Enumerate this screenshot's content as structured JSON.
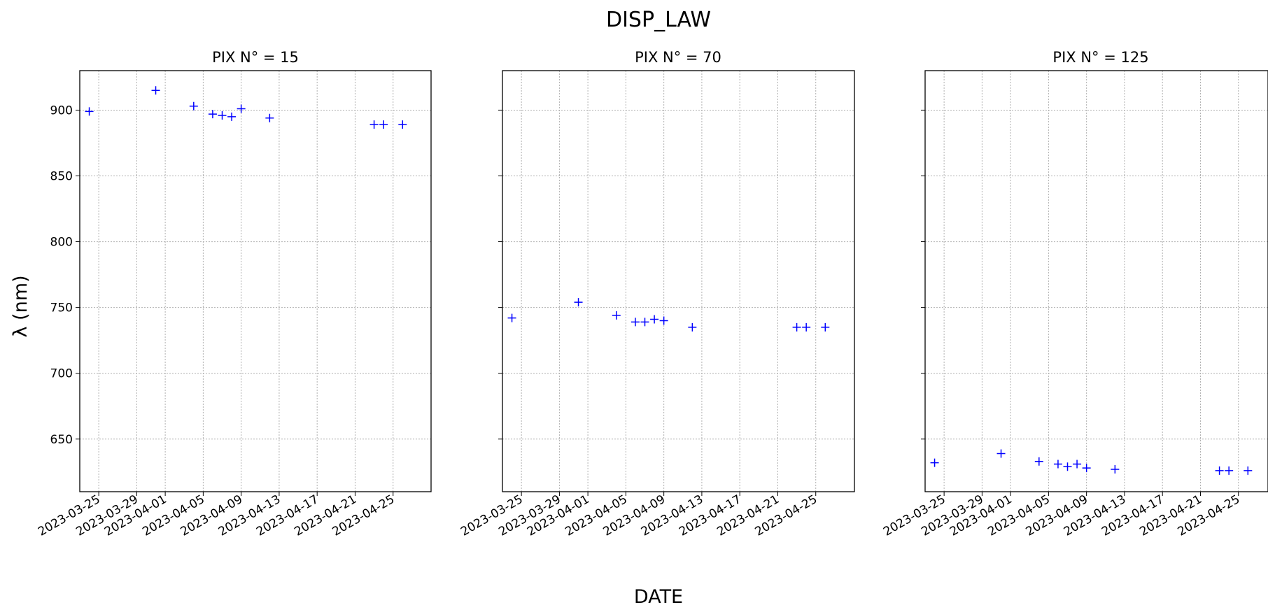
{
  "figure": {
    "title": "DISP_LAW",
    "xlabel": "DATE",
    "ylabel": "λ (nm)"
  },
  "chart_data": [
    {
      "type": "scatter",
      "title": "PIX N° = 15",
      "marker": "+",
      "color": "#0000ff",
      "grid": true,
      "xlim": [
        "2023-03-23",
        "2023-04-29"
      ],
      "ylim": [
        610,
        930
      ],
      "xticks": [
        "2023-03-25",
        "2023-03-29",
        "2023-04-01",
        "2023-04-05",
        "2023-04-09",
        "2023-04-13",
        "2023-04-17",
        "2023-04-21",
        "2023-04-25"
      ],
      "yticks": [
        "650",
        "700",
        "750",
        "800",
        "850",
        "900"
      ],
      "x": [
        "2023-03-24",
        "2023-03-31",
        "2023-04-04",
        "2023-04-06",
        "2023-04-07",
        "2023-04-08",
        "2023-04-09",
        "2023-04-12",
        "2023-04-23",
        "2023-04-24",
        "2023-04-26"
      ],
      "y": [
        899,
        915,
        903,
        897,
        896,
        895,
        901,
        894,
        889,
        889,
        889
      ]
    },
    {
      "type": "scatter",
      "title": "PIX N° = 70",
      "marker": "+",
      "color": "#0000ff",
      "grid": true,
      "xlim": [
        "2023-03-23",
        "2023-04-29"
      ],
      "ylim": [
        610,
        930
      ],
      "xticks": [
        "2023-03-25",
        "2023-03-29",
        "2023-04-01",
        "2023-04-05",
        "2023-04-09",
        "2023-04-13",
        "2023-04-17",
        "2023-04-21",
        "2023-04-25"
      ],
      "yticks": [
        "650",
        "700",
        "750",
        "800",
        "850",
        "900"
      ],
      "x": [
        "2023-03-24",
        "2023-03-31",
        "2023-04-04",
        "2023-04-06",
        "2023-04-07",
        "2023-04-08",
        "2023-04-09",
        "2023-04-12",
        "2023-04-23",
        "2023-04-24",
        "2023-04-26"
      ],
      "y": [
        742,
        754,
        744,
        739,
        739,
        741,
        740,
        735,
        735,
        735,
        735
      ]
    },
    {
      "type": "scatter",
      "title": "PIX N° = 125",
      "marker": "+",
      "color": "#0000ff",
      "grid": true,
      "xlim": [
        "2023-03-23",
        "2023-04-29"
      ],
      "ylim": [
        610,
        930
      ],
      "xticks": [
        "2023-03-25",
        "2023-03-29",
        "2023-04-01",
        "2023-04-05",
        "2023-04-09",
        "2023-04-13",
        "2023-04-17",
        "2023-04-21",
        "2023-04-25"
      ],
      "yticks": [
        "650",
        "700",
        "750",
        "800",
        "850",
        "900"
      ],
      "x": [
        "2023-03-24",
        "2023-03-31",
        "2023-04-04",
        "2023-04-06",
        "2023-04-07",
        "2023-04-08",
        "2023-04-09",
        "2023-04-12",
        "2023-04-23",
        "2023-04-24",
        "2023-04-26"
      ],
      "y": [
        632,
        639,
        633,
        631,
        629,
        631,
        628,
        627,
        626,
        626,
        626
      ]
    }
  ]
}
